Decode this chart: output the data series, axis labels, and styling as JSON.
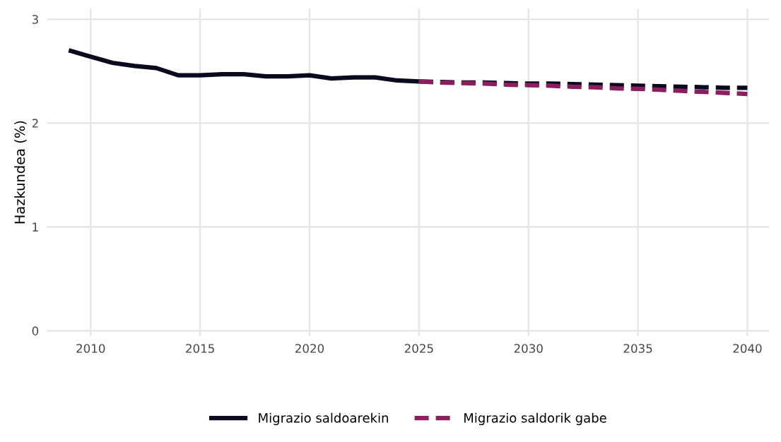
{
  "chart_data": {
    "type": "line",
    "ylabel": "Hazkundea (%)",
    "series": [
      {
        "name": "Migrazio saldoarekin",
        "color": "#0a0a1e",
        "line_style": "solid",
        "x": [
          2009,
          2010,
          2011,
          2012,
          2013,
          2014,
          2015,
          2016,
          2017,
          2018,
          2019,
          2020,
          2021,
          2022,
          2023,
          2024,
          2025
        ],
        "values": [
          2.7,
          2.64,
          2.58,
          2.55,
          2.53,
          2.46,
          2.46,
          2.47,
          2.47,
          2.45,
          2.45,
          2.46,
          2.43,
          2.44,
          2.44,
          2.41,
          2.4
        ]
      },
      {
        "color": "#0a0a1e",
        "line_style": "dashed",
        "x": [
          2025,
          2026,
          2027,
          2028,
          2029,
          2030,
          2031,
          2032,
          2033,
          2034,
          2035,
          2036,
          2037,
          2038,
          2039,
          2040
        ],
        "values": [
          2.4,
          2.395,
          2.39,
          2.39,
          2.385,
          2.38,
          2.38,
          2.375,
          2.37,
          2.365,
          2.36,
          2.355,
          2.35,
          2.345,
          2.34,
          2.34
        ]
      },
      {
        "name": "Migrazio saldorik gabe",
        "color": "#8b1e5f",
        "line_style": "dashed",
        "x": [
          2025,
          2026,
          2027,
          2028,
          2029,
          2030,
          2031,
          2032,
          2033,
          2034,
          2035,
          2036,
          2037,
          2038,
          2039,
          2040
        ],
        "values": [
          2.4,
          2.39,
          2.385,
          2.38,
          2.37,
          2.365,
          2.36,
          2.35,
          2.345,
          2.335,
          2.33,
          2.32,
          2.31,
          2.3,
          2.29,
          2.28
        ]
      }
    ],
    "xlim": [
      2008.0,
      2041.0
    ],
    "xticks": [
      2010,
      2015,
      2020,
      2025,
      2030,
      2035,
      2040
    ],
    "ylim": [
      -0.05,
      3.1
    ],
    "yticks": [
      0,
      1,
      2,
      3
    ],
    "grid": true,
    "legend": "bottom",
    "marker": "none"
  }
}
